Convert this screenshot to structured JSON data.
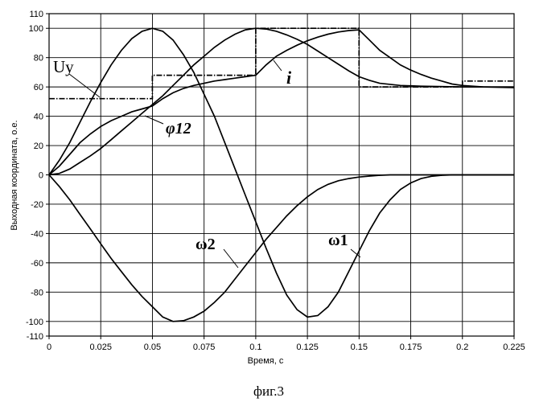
{
  "chart_data": {
    "type": "line",
    "xlabel": "Время, с",
    "ylabel": "Выходная координата, о.е.",
    "caption": "фиг.3",
    "xlim": [
      0,
      0.225
    ],
    "ylim": [
      -110,
      110
    ],
    "x_ticks": [
      "0",
      "0.025",
      "0.05",
      "0.075",
      "0.1",
      "0.125",
      "0.15",
      "0.175",
      "0.2",
      "0.225"
    ],
    "y_ticks": [
      "110",
      "100",
      "80",
      "60",
      "40",
      "20",
      "0",
      "-20",
      "-40",
      "-60",
      "-80",
      "-100",
      "-110"
    ],
    "x_tick_values": [
      0,
      0.025,
      0.05,
      0.075,
      0.1,
      0.125,
      0.15,
      0.175,
      0.2,
      0.225
    ],
    "y_tick_values": [
      110,
      100,
      80,
      60,
      40,
      20,
      0,
      -20,
      -40,
      -60,
      -80,
      -100,
      -110
    ],
    "grid": true,
    "series": [
      {
        "name": "Uу",
        "style": "dash-dot",
        "points": [
          [
            0,
            52
          ],
          [
            0.05,
            52
          ],
          [
            0.05,
            68
          ],
          [
            0.1,
            68
          ],
          [
            0.1,
            100
          ],
          [
            0.15,
            100
          ],
          [
            0.15,
            60
          ],
          [
            0.2,
            60
          ],
          [
            0.2,
            64
          ],
          [
            0.225,
            64
          ]
        ]
      },
      {
        "name": "i",
        "style": "solid",
        "points": [
          [
            0,
            0
          ],
          [
            0.005,
            6
          ],
          [
            0.01,
            14
          ],
          [
            0.015,
            22
          ],
          [
            0.02,
            28
          ],
          [
            0.025,
            33
          ],
          [
            0.03,
            37
          ],
          [
            0.035,
            40
          ],
          [
            0.04,
            43
          ],
          [
            0.045,
            45
          ],
          [
            0.05,
            47
          ],
          [
            0.055,
            52
          ],
          [
            0.06,
            56
          ],
          [
            0.065,
            59
          ],
          [
            0.07,
            61
          ],
          [
            0.075,
            62.5
          ],
          [
            0.08,
            64
          ],
          [
            0.085,
            65
          ],
          [
            0.09,
            66
          ],
          [
            0.095,
            67
          ],
          [
            0.1,
            68
          ],
          [
            0.105,
            75
          ],
          [
            0.11,
            81
          ],
          [
            0.115,
            85
          ],
          [
            0.12,
            88.5
          ],
          [
            0.125,
            91.5
          ],
          [
            0.13,
            94
          ],
          [
            0.135,
            96
          ],
          [
            0.14,
            97.5
          ],
          [
            0.145,
            98.5
          ],
          [
            0.15,
            99
          ],
          [
            0.155,
            92
          ],
          [
            0.16,
            85
          ],
          [
            0.165,
            80
          ],
          [
            0.17,
            75
          ],
          [
            0.175,
            71.5
          ],
          [
            0.18,
            68.5
          ],
          [
            0.185,
            66
          ],
          [
            0.19,
            64
          ],
          [
            0.195,
            62
          ],
          [
            0.2,
            61
          ],
          [
            0.21,
            60
          ],
          [
            0.225,
            59.5
          ]
        ]
      },
      {
        "name": "φ12",
        "style": "solid",
        "points": [
          [
            0,
            0
          ],
          [
            0.005,
            1
          ],
          [
            0.01,
            4
          ],
          [
            0.015,
            8.5
          ],
          [
            0.02,
            13
          ],
          [
            0.025,
            18
          ],
          [
            0.03,
            24
          ],
          [
            0.035,
            30
          ],
          [
            0.04,
            36
          ],
          [
            0.045,
            42
          ],
          [
            0.05,
            48
          ],
          [
            0.055,
            54
          ],
          [
            0.06,
            61
          ],
          [
            0.065,
            68
          ],
          [
            0.07,
            75
          ],
          [
            0.075,
            81
          ],
          [
            0.08,
            87
          ],
          [
            0.085,
            92
          ],
          [
            0.09,
            96
          ],
          [
            0.095,
            99
          ],
          [
            0.1,
            100
          ],
          [
            0.105,
            99.5
          ],
          [
            0.11,
            98
          ],
          [
            0.115,
            95.5
          ],
          [
            0.12,
            92.5
          ],
          [
            0.125,
            89
          ],
          [
            0.13,
            84.5
          ],
          [
            0.135,
            80
          ],
          [
            0.14,
            75.5
          ],
          [
            0.145,
            71
          ],
          [
            0.15,
            67
          ],
          [
            0.155,
            64.5
          ],
          [
            0.16,
            62.5
          ],
          [
            0.17,
            61
          ],
          [
            0.18,
            60.5
          ],
          [
            0.2,
            60
          ],
          [
            0.225,
            60
          ]
        ]
      },
      {
        "name": "ω1",
        "style": "solid",
        "points": [
          [
            0,
            0
          ],
          [
            0.005,
            10
          ],
          [
            0.01,
            22
          ],
          [
            0.015,
            36
          ],
          [
            0.02,
            50
          ],
          [
            0.025,
            63
          ],
          [
            0.03,
            75
          ],
          [
            0.035,
            85
          ],
          [
            0.04,
            93
          ],
          [
            0.045,
            98
          ],
          [
            0.05,
            100
          ],
          [
            0.055,
            98
          ],
          [
            0.06,
            92
          ],
          [
            0.065,
            82
          ],
          [
            0.07,
            70
          ],
          [
            0.075,
            55
          ],
          [
            0.08,
            40
          ],
          [
            0.085,
            22
          ],
          [
            0.09,
            4
          ],
          [
            0.095,
            -14
          ],
          [
            0.1,
            -32
          ],
          [
            0.105,
            -50
          ],
          [
            0.11,
            -67
          ],
          [
            0.115,
            -82
          ],
          [
            0.12,
            -92
          ],
          [
            0.125,
            -97
          ],
          [
            0.13,
            -96
          ],
          [
            0.135,
            -90
          ],
          [
            0.14,
            -80
          ],
          [
            0.145,
            -66
          ],
          [
            0.15,
            -52
          ],
          [
            0.155,
            -38
          ],
          [
            0.16,
            -26
          ],
          [
            0.165,
            -17
          ],
          [
            0.17,
            -10
          ],
          [
            0.175,
            -5.5
          ],
          [
            0.18,
            -2.5
          ],
          [
            0.185,
            -1
          ],
          [
            0.19,
            -0.3
          ],
          [
            0.195,
            0
          ],
          [
            0.225,
            0
          ]
        ]
      },
      {
        "name": "ω2",
        "style": "solid",
        "points": [
          [
            0,
            0
          ],
          [
            0.005,
            -8
          ],
          [
            0.01,
            -17
          ],
          [
            0.015,
            -27
          ],
          [
            0.02,
            -37
          ],
          [
            0.025,
            -47
          ],
          [
            0.03,
            -57
          ],
          [
            0.035,
            -66
          ],
          [
            0.04,
            -75
          ],
          [
            0.045,
            -83
          ],
          [
            0.05,
            -90
          ],
          [
            0.055,
            -97
          ],
          [
            0.06,
            -100
          ],
          [
            0.065,
            -99.5
          ],
          [
            0.07,
            -97
          ],
          [
            0.075,
            -93
          ],
          [
            0.08,
            -87
          ],
          [
            0.085,
            -80
          ],
          [
            0.09,
            -71
          ],
          [
            0.095,
            -62
          ],
          [
            0.1,
            -53
          ],
          [
            0.105,
            -44
          ],
          [
            0.11,
            -36
          ],
          [
            0.115,
            -28
          ],
          [
            0.12,
            -21
          ],
          [
            0.125,
            -15
          ],
          [
            0.13,
            -10
          ],
          [
            0.135,
            -6.5
          ],
          [
            0.14,
            -4
          ],
          [
            0.145,
            -2.5
          ],
          [
            0.15,
            -1.5
          ],
          [
            0.155,
            -0.8
          ],
          [
            0.16,
            -0.3
          ],
          [
            0.165,
            0
          ],
          [
            0.225,
            0
          ]
        ]
      }
    ],
    "labels": [
      {
        "text": "Uу",
        "series": "Uу"
      },
      {
        "text": "i",
        "series": "i"
      },
      {
        "text": "φ12",
        "series": "φ12"
      },
      {
        "text": "ω2",
        "series": "ω2"
      },
      {
        "text": "ω1",
        "series": "ω1"
      }
    ]
  }
}
